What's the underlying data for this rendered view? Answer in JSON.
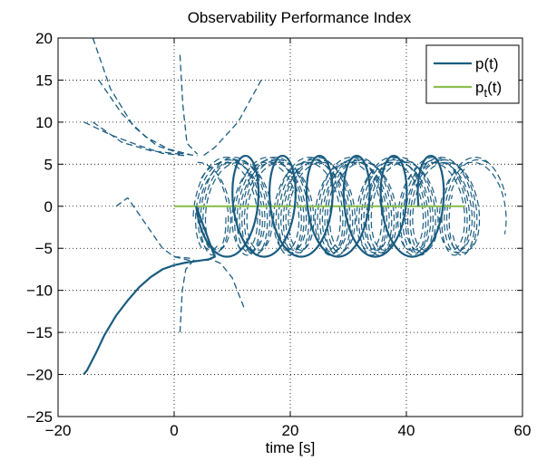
{
  "chart_data": {
    "type": "line",
    "title": "Observability Performance Index",
    "xlabel": "time [s]",
    "ylabel": "",
    "xlim": [
      -20,
      60
    ],
    "ylim": [
      -25,
      20
    ],
    "xticks": [
      -20,
      0,
      20,
      40,
      60
    ],
    "yticks": [
      -25,
      -20,
      -15,
      -10,
      -5,
      0,
      5,
      10,
      15,
      20
    ],
    "grid": true,
    "legend": {
      "placement": "top-right",
      "entries": [
        {
          "label": "p(t)",
          "label_main": "p",
          "label_sub": "",
          "label_tail": "(t)",
          "color": "#1a5c80",
          "style": "solid"
        },
        {
          "label": "p_t(t)",
          "label_main": "p",
          "label_sub": "t",
          "label_tail": "(t)",
          "color": "#8cbf4f",
          "style": "solid"
        }
      ]
    },
    "series": [
      {
        "name": "p(t)",
        "color": "#1a5c80",
        "style": "solid",
        "approach": [
          [
            -15.6,
            -20
          ],
          [
            -15,
            -19.5
          ],
          [
            -13.5,
            -17.5
          ],
          [
            -12,
            -15.3
          ],
          [
            -10,
            -13
          ],
          [
            -8,
            -11.2
          ],
          [
            -6,
            -9.6
          ],
          [
            -4,
            -8.4
          ],
          [
            -2,
            -7.5
          ],
          [
            0,
            -7
          ],
          [
            2,
            -6.7
          ],
          [
            4,
            -6.5
          ],
          [
            6,
            -6.3
          ],
          [
            7,
            -6
          ]
        ],
        "loops": {
          "x_start": 7.5,
          "x_end": 49.5,
          "loop_count": 6,
          "half_width": 3.7,
          "amplitude": 6
        }
      },
      {
        "name": "p_t(t)",
        "color": "#8cbf4f",
        "style": "solid",
        "x": [
          0,
          50
        ],
        "y": [
          0,
          0
        ]
      }
    ],
    "dashed_trajectories": {
      "color": "#1a5c80",
      "style": "dashed",
      "curves": [
        [
          [
            -14,
            20
          ],
          [
            -11,
            14
          ],
          [
            -7,
            9.5
          ],
          [
            -3,
            7.2
          ],
          [
            1,
            6.3
          ],
          [
            4,
            6
          ]
        ],
        [
          [
            -13,
            15
          ],
          [
            -9,
            11
          ],
          [
            -5,
            8.3
          ],
          [
            -1,
            6.8
          ],
          [
            3,
            6.1
          ]
        ],
        [
          [
            -15.5,
            10
          ],
          [
            -11,
            8.5
          ],
          [
            -6,
            7.2
          ],
          [
            -2,
            6.3
          ],
          [
            2,
            6
          ]
        ],
        [
          [
            -14,
            10
          ],
          [
            -9,
            7.6
          ],
          [
            -4,
            6.6
          ],
          [
            1,
            6.2
          ]
        ],
        [
          [
            1,
            18
          ],
          [
            1.5,
            12
          ],
          [
            2.2,
            7.5
          ],
          [
            4,
            6.2
          ]
        ],
        [
          [
            15,
            15
          ],
          [
            11,
            10
          ],
          [
            7,
            7
          ],
          [
            5,
            6
          ]
        ],
        [
          [
            12,
            -12
          ],
          [
            10,
            -8.5
          ],
          [
            8,
            -6.8
          ],
          [
            6,
            -6.2
          ]
        ],
        [
          [
            1,
            -15
          ],
          [
            1.4,
            -10
          ],
          [
            2,
            -7.5
          ],
          [
            3.5,
            -6.3
          ]
        ],
        [
          [
            -10,
            0
          ],
          [
            -8,
            1
          ],
          [
            -5,
            -2
          ],
          [
            -2,
            -5
          ],
          [
            0,
            -6
          ],
          [
            3,
            -6.2
          ]
        ],
        [
          [
            0,
            -6
          ],
          [
            3,
            -6.5
          ],
          [
            6,
            -6.4
          ]
        ]
      ],
      "cloud": {
        "x_start": 4,
        "x_end": 54,
        "amplitude": 6,
        "copies": 7
      }
    }
  }
}
